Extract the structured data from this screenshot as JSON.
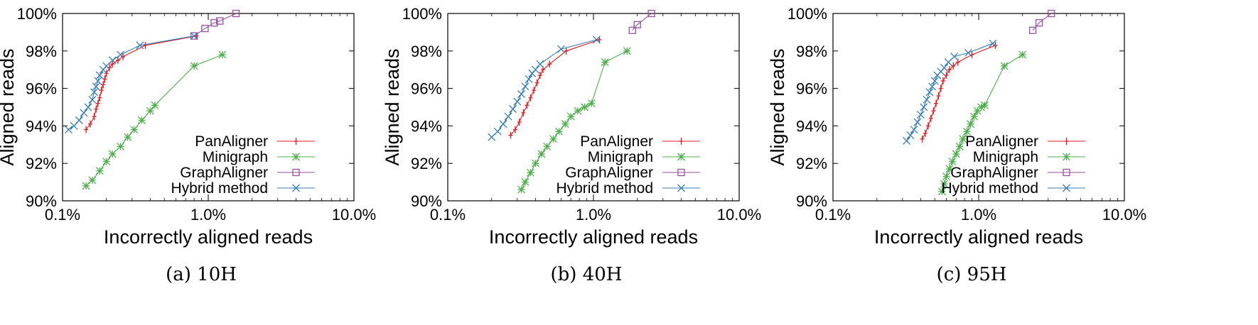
{
  "figure": {
    "captions": [
      "(a)  10H",
      "(b)  40H",
      "(c)  95H"
    ]
  },
  "chart_data": [
    {
      "type": "line",
      "caption": "(a)  10H",
      "xlabel": "Incorrectly aligned reads",
      "ylabel": "Aligned reads",
      "xscale": "log",
      "xlim": [
        0.1,
        10.0
      ],
      "ylim": [
        90,
        100
      ],
      "xticks": [
        "0.1%",
        "1.0%",
        "10.0%"
      ],
      "yticks": [
        "90%",
        "92%",
        "94%",
        "96%",
        "98%",
        "100%"
      ],
      "legend_position": "bottom-right",
      "series": [
        {
          "name": "PanAligner",
          "color": "#e41a1c",
          "marker": "plus",
          "x": [
            0.145,
            0.155,
            0.165,
            0.17,
            0.175,
            0.18,
            0.185,
            0.19,
            0.195,
            0.2,
            0.21,
            0.22,
            0.24,
            0.26,
            0.37,
            0.83
          ],
          "y": [
            93.8,
            94.1,
            94.5,
            94.9,
            95.2,
            95.5,
            95.9,
            96.2,
            96.5,
            96.8,
            97.1,
            97.3,
            97.5,
            97.7,
            98.3,
            98.8
          ]
        },
        {
          "name": "Minigraph",
          "color": "#4daf4a",
          "marker": "star",
          "x": [
            0.145,
            0.16,
            0.18,
            0.2,
            0.22,
            0.25,
            0.28,
            0.31,
            0.35,
            0.4,
            0.43,
            0.8,
            1.25
          ],
          "y": [
            90.8,
            91.1,
            91.6,
            92.1,
            92.5,
            92.9,
            93.4,
            93.8,
            94.3,
            94.8,
            95.1,
            97.2,
            97.8
          ]
        },
        {
          "name": "GraphAligner",
          "color": "#984ea3",
          "marker": "square",
          "x": [
            0.8,
            0.95,
            1.1,
            1.2,
            1.55
          ],
          "y": [
            98.8,
            99.2,
            99.5,
            99.6,
            100.0
          ]
        },
        {
          "name": "Hybrid method",
          "color": "#377eb8",
          "marker": "cross",
          "x": [
            0.11,
            0.12,
            0.13,
            0.14,
            0.15,
            0.16,
            0.165,
            0.17,
            0.175,
            0.18,
            0.19,
            0.2,
            0.22,
            0.25,
            0.34,
            0.8
          ],
          "y": [
            93.8,
            94.0,
            94.3,
            94.7,
            95.0,
            95.4,
            95.8,
            96.1,
            96.4,
            96.7,
            97.0,
            97.2,
            97.5,
            97.8,
            98.3,
            98.8
          ]
        }
      ]
    },
    {
      "type": "line",
      "caption": "(b)  40H",
      "xlabel": "Incorrectly aligned reads",
      "ylabel": "Aligned reads",
      "xscale": "log",
      "xlim": [
        0.1,
        10.0
      ],
      "ylim": [
        90,
        100
      ],
      "xticks": [
        "0.1%",
        "1.0%",
        "10.0%"
      ],
      "yticks": [
        "90%",
        "92%",
        "94%",
        "96%",
        "98%",
        "100%"
      ],
      "legend_position": "bottom-right",
      "series": [
        {
          "name": "PanAligner",
          "color": "#e41a1c",
          "marker": "plus",
          "x": [
            0.27,
            0.29,
            0.31,
            0.33,
            0.35,
            0.37,
            0.39,
            0.41,
            0.43,
            0.45,
            0.5,
            0.65,
            1.1
          ],
          "y": [
            93.5,
            93.8,
            94.2,
            94.7,
            95.1,
            95.5,
            95.9,
            96.3,
            96.7,
            97.0,
            97.3,
            98.0,
            98.6
          ]
        },
        {
          "name": "Minigraph",
          "color": "#4daf4a",
          "marker": "star",
          "x": [
            0.32,
            0.34,
            0.37,
            0.4,
            0.44,
            0.48,
            0.53,
            0.58,
            0.64,
            0.7,
            0.78,
            0.87,
            0.97,
            1.2,
            1.7
          ],
          "y": [
            90.6,
            91.0,
            91.5,
            92.0,
            92.5,
            92.9,
            93.3,
            93.7,
            94.1,
            94.5,
            94.8,
            95.0,
            95.2,
            97.4,
            98.0
          ]
        },
        {
          "name": "GraphAligner",
          "color": "#984ea3",
          "marker": "square",
          "x": [
            1.85,
            2.0,
            2.5
          ],
          "y": [
            99.1,
            99.4,
            100.0
          ]
        },
        {
          "name": "Hybrid method",
          "color": "#377eb8",
          "marker": "cross",
          "x": [
            0.2,
            0.22,
            0.24,
            0.26,
            0.28,
            0.3,
            0.32,
            0.34,
            0.36,
            0.38,
            0.4,
            0.43,
            0.6,
            1.05
          ],
          "y": [
            93.4,
            93.7,
            94.1,
            94.5,
            94.9,
            95.3,
            95.7,
            96.1,
            96.5,
            96.8,
            97.0,
            97.3,
            98.1,
            98.6
          ]
        }
      ]
    },
    {
      "type": "line",
      "caption": "(c)  95H",
      "xlabel": "Incorrectly aligned reads",
      "ylabel": "Aligned reads",
      "xscale": "log",
      "xlim": [
        0.1,
        10.0
      ],
      "ylim": [
        90,
        100
      ],
      "xticks": [
        "0.1%",
        "1.0%",
        "10.0%"
      ],
      "yticks": [
        "90%",
        "92%",
        "94%",
        "96%",
        "98%",
        "100%"
      ],
      "legend_position": "bottom-right",
      "series": [
        {
          "name": "PanAligner",
          "color": "#e41a1c",
          "marker": "plus",
          "x": [
            0.41,
            0.43,
            0.45,
            0.47,
            0.49,
            0.51,
            0.53,
            0.55,
            0.57,
            0.6,
            0.63,
            0.67,
            0.72,
            0.9,
            1.3
          ],
          "y": [
            93.3,
            93.6,
            94.0,
            94.4,
            94.8,
            95.2,
            95.6,
            96.0,
            96.4,
            96.7,
            97.0,
            97.2,
            97.4,
            97.8,
            98.3
          ]
        },
        {
          "name": "Minigraph",
          "color": "#4daf4a",
          "marker": "star",
          "x": [
            0.56,
            0.58,
            0.6,
            0.63,
            0.66,
            0.7,
            0.74,
            0.78,
            0.83,
            0.88,
            0.93,
            0.98,
            1.04,
            1.1,
            1.5,
            2.0
          ],
          "y": [
            90.5,
            90.9,
            91.3,
            91.7,
            92.1,
            92.5,
            92.9,
            93.3,
            93.7,
            94.1,
            94.5,
            94.8,
            95.0,
            95.1,
            97.2,
            97.8
          ]
        },
        {
          "name": "GraphAligner",
          "color": "#984ea3",
          "marker": "square",
          "x": [
            2.35,
            2.6,
            3.15
          ],
          "y": [
            99.1,
            99.5,
            100.0
          ]
        },
        {
          "name": "Hybrid method",
          "color": "#377eb8",
          "marker": "cross",
          "x": [
            0.32,
            0.34,
            0.36,
            0.38,
            0.4,
            0.42,
            0.44,
            0.46,
            0.48,
            0.5,
            0.52,
            0.55,
            0.58,
            0.62,
            0.68,
            0.85,
            1.25
          ],
          "y": [
            93.2,
            93.5,
            93.8,
            94.2,
            94.6,
            95.0,
            95.4,
            95.8,
            96.1,
            96.4,
            96.7,
            96.9,
            97.1,
            97.4,
            97.7,
            97.9,
            98.4
          ]
        }
      ]
    }
  ]
}
